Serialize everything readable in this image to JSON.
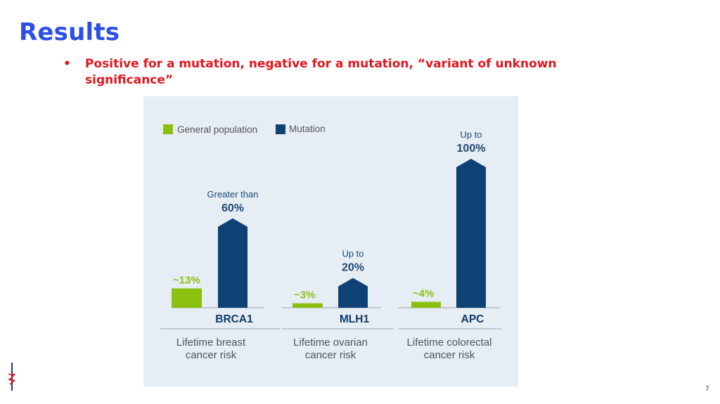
{
  "slide": {
    "title": "Results",
    "bullet": "Positive for a mutation, negative for a mutation, “variant of unknown significance”",
    "page_number": "7",
    "colors": {
      "title": "#2b4ee8",
      "bullet": "#e0161e",
      "panel_bg": "#e6edf4"
    }
  },
  "chart_data": {
    "type": "bar",
    "legend": [
      {
        "label": "General population",
        "color": "#8cc00f"
      },
      {
        "label": "Mutation",
        "color": "#0e4275"
      }
    ],
    "legend_position": "top-left",
    "groups": [
      {
        "gene": "BRCA1",
        "caption": [
          "Lifetime breast",
          "cancer risk"
        ],
        "general": {
          "value": 13,
          "label": "~13%"
        },
        "mutation": {
          "value": 60,
          "prefix": "Greater than",
          "label": "60%"
        }
      },
      {
        "gene": "MLH1",
        "caption": [
          "Lifetime ovarian",
          "cancer risk"
        ],
        "general": {
          "value": 3,
          "label": "~3%"
        },
        "mutation": {
          "value": 20,
          "prefix": "Up to",
          "label": "20%"
        }
      },
      {
        "gene": "APC",
        "caption": [
          "Lifetime colorectal",
          "cancer risk"
        ],
        "general": {
          "value": 4,
          "label": "~4%"
        },
        "mutation": {
          "value": 100,
          "prefix": "Up to",
          "label": "100%"
        }
      }
    ],
    "ylim": [
      0,
      100
    ],
    "grid": false
  }
}
